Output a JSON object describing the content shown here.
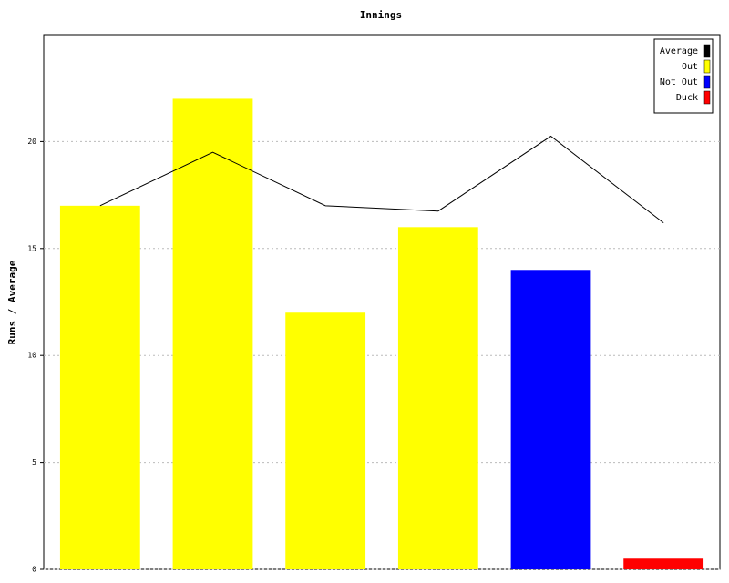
{
  "chart_data": {
    "type": "bar",
    "title": "Innings",
    "y_label": "Runs / Average",
    "ylim": [
      0,
      25
    ],
    "yticks": [
      0,
      5,
      10,
      15,
      20
    ],
    "grid": true,
    "legend": "top-right",
    "series": [
      {
        "name": "Average",
        "type": "line",
        "color": "#000000",
        "values": [
          17,
          19.5,
          17,
          16.75,
          20.25,
          16.2
        ]
      },
      {
        "name": "Out",
        "type": "bar",
        "color": "#ffff00",
        "values": [
          17,
          22,
          12,
          16,
          null,
          null
        ]
      },
      {
        "name": "Not Out",
        "type": "bar",
        "color": "#0000ff",
        "values": [
          null,
          null,
          null,
          null,
          14,
          null
        ]
      },
      {
        "name": "Duck",
        "type": "bar",
        "color": "#ff0000",
        "values": [
          null,
          null,
          null,
          null,
          null,
          0.5
        ]
      }
    ]
  }
}
